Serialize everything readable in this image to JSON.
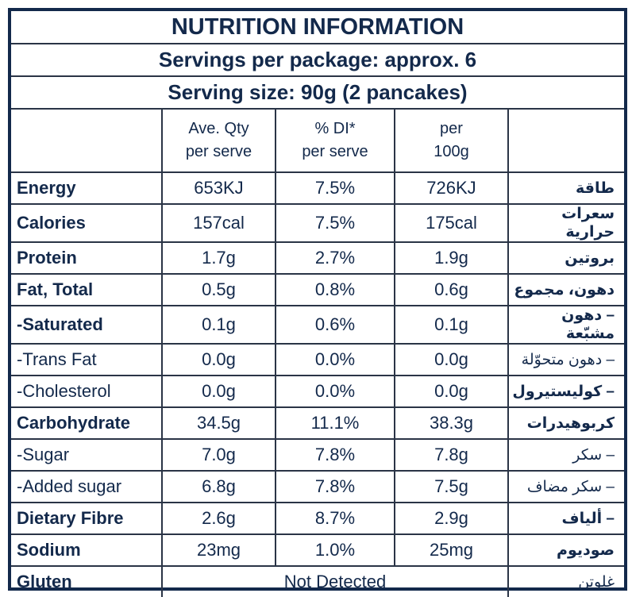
{
  "title": "NUTRITION INFORMATION",
  "servings_per_package": "Servings per package: approx. 6",
  "serving_size": "Serving size: 90g (2 pancakes)",
  "headers": {
    "ave_qty": [
      "Ave. Qty",
      "per serve"
    ],
    "di": [
      "% DI*",
      "per serve"
    ],
    "per100": [
      "per",
      "100g"
    ]
  },
  "colors": {
    "text": "#13294b",
    "border": "#13294b"
  },
  "rows": [
    {
      "label": "Energy",
      "bold": true,
      "serve": "653KJ",
      "di": "7.5%",
      "per100": "726KJ",
      "arabic": "طاقة"
    },
    {
      "label": "Calories",
      "bold": true,
      "serve": "157cal",
      "di": "7.5%",
      "per100": "175cal",
      "arabic": "سعرات حرارية"
    },
    {
      "label": "Protein",
      "bold": true,
      "serve": "1.7g",
      "di": "2.7%",
      "per100": "1.9g",
      "arabic": "بروتين"
    },
    {
      "label": "Fat, Total",
      "bold": true,
      "serve": "0.5g",
      "di": "0.8%",
      "per100": "0.6g",
      "arabic": "دهون، مجموع"
    },
    {
      "label": "-Saturated",
      "bold": true,
      "serve": "0.1g",
      "di": "0.6%",
      "per100": "0.1g",
      "arabic": "– دهون مشبّعة"
    },
    {
      "label": "-Trans Fat",
      "bold": false,
      "serve": "0.0g",
      "di": "0.0%",
      "per100": "0.0g",
      "arabic": "– دهون متحوّلة"
    },
    {
      "label": "-Cholesterol",
      "bold": false,
      "serve": "0.0g",
      "di": "0.0%",
      "per100": "0.0g",
      "arabic": "– كوليستيرول"
    },
    {
      "label": "Carbohydrate",
      "bold": true,
      "serve": "34.5g",
      "di": "11.1%",
      "per100": "38.3g",
      "arabic": "كربوهيدرات"
    },
    {
      "label": "-Sugar",
      "bold": false,
      "serve": "7.0g",
      "di": "7.8%",
      "per100": "7.8g",
      "arabic": "– سكر"
    },
    {
      "label": "-Added sugar",
      "bold": false,
      "serve": "6.8g",
      "di": "7.8%",
      "per100": "7.5g",
      "arabic": "– سكر مضاف"
    },
    {
      "label": "Dietary Fibre",
      "bold": true,
      "serve": "2.6g",
      "di": "8.7%",
      "per100": "2.9g",
      "arabic": "– ألياف"
    },
    {
      "label": "Sodium",
      "bold": true,
      "serve": "23mg",
      "di": "1.0%",
      "per100": "25mg",
      "arabic": "صوديوم"
    }
  ],
  "gluten": {
    "label": "Gluten",
    "value": "Not Detected",
    "arabic": "غلوتن"
  }
}
